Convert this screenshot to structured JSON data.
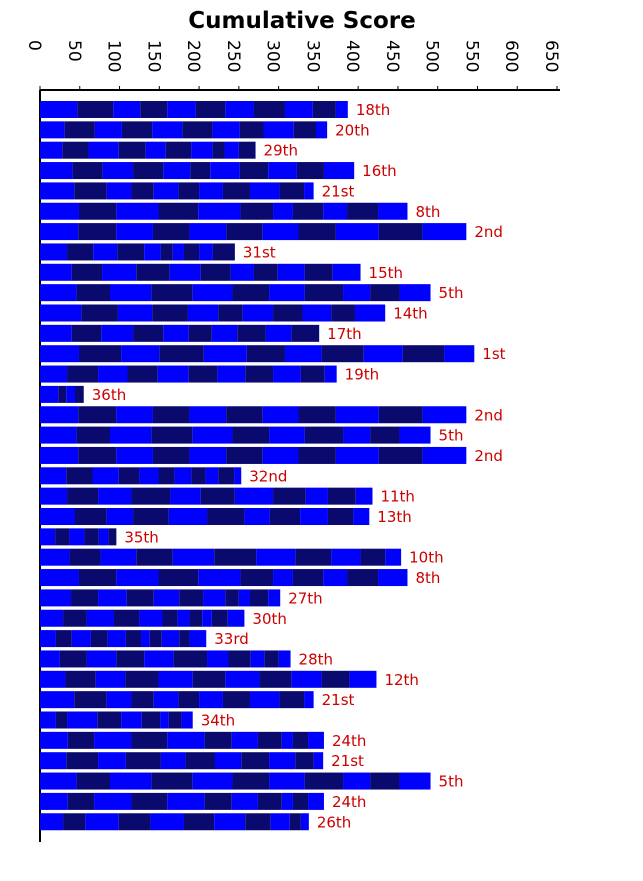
{
  "chart_data": {
    "type": "bar",
    "orientation": "horizontal",
    "stacked": true,
    "title": "Cumulative Score",
    "axis_position": "top",
    "xlim": [
      0,
      650
    ],
    "ticks": [
      0,
      50,
      100,
      150,
      200,
      250,
      300,
      350,
      400,
      450,
      500,
      550,
      600,
      650
    ],
    "tick_labels": [
      "0",
      "50",
      "100",
      "150",
      "200",
      "250",
      "300",
      "350",
      "400",
      "450",
      "500",
      "550",
      "600",
      "650"
    ],
    "segment_colors": [
      "#0000ff",
      "#0a0a6e"
    ],
    "label_color": "#cc0000",
    "rows": [
      {
        "rank": "18th",
        "segments": [
          47,
          45,
          34,
          34,
          36,
          37,
          36,
          39,
          35,
          29,
          15
        ]
      },
      {
        "rank": "20th",
        "segments": [
          31,
          38,
          34,
          38,
          38,
          38,
          34,
          30,
          38,
          28,
          14
        ]
      },
      {
        "rank": "29th",
        "segments": [
          28,
          33,
          38,
          34,
          25,
          32,
          27,
          15,
          18,
          21
        ]
      },
      {
        "rank": "16th",
        "segments": [
          41,
          38,
          38,
          38,
          34,
          25,
          37,
          36,
          36,
          34,
          38
        ]
      },
      {
        "rank": "21st",
        "segments": [
          43,
          41,
          31,
          28,
          31,
          26,
          30,
          34,
          37,
          31,
          12
        ]
      },
      {
        "rank": "8th",
        "segments": [
          49,
          47,
          53,
          50,
          53,
          41,
          25,
          38,
          30,
          39,
          37
        ]
      },
      {
        "rank": "2nd",
        "segments": [
          48,
          48,
          46,
          46,
          46,
          46,
          45,
          47,
          54,
          55,
          55
        ]
      },
      {
        "rank": "31st",
        "segments": [
          34,
          33,
          30,
          34,
          21,
          15,
          14,
          19,
          17,
          28
        ]
      },
      {
        "rank": "15th",
        "segments": [
          40,
          38,
          43,
          42,
          39,
          38,
          29,
          30,
          34,
          35,
          35
        ]
      },
      {
        "rank": "5th",
        "segments": [
          46,
          42,
          52,
          52,
          50,
          46,
          45,
          48,
          34,
          37,
          39
        ]
      },
      {
        "rank": "14th",
        "segments": [
          52,
          46,
          43,
          45,
          38,
          31,
          38,
          37,
          36,
          30,
          38
        ]
      },
      {
        "rank": "17th",
        "segments": [
          40,
          37,
          40,
          38,
          32,
          29,
          32,
          36,
          32,
          35
        ]
      },
      {
        "rank": "1st",
        "segments": [
          49,
          53,
          48,
          56,
          54,
          48,
          46,
          53,
          49,
          52,
          38
        ]
      },
      {
        "rank": "19th",
        "segments": [
          34,
          39,
          37,
          38,
          39,
          36,
          35,
          35,
          35,
          30,
          15
        ]
      },
      {
        "rank": "36th",
        "segments": [
          23,
          10,
          11,
          11
        ]
      },
      {
        "rank": "2nd",
        "segments": [
          48,
          48,
          46,
          46,
          46,
          46,
          45,
          47,
          54,
          55,
          55
        ]
      },
      {
        "rank": "5th",
        "segments": [
          46,
          42,
          52,
          52,
          50,
          46,
          45,
          48,
          34,
          37,
          39
        ]
      },
      {
        "rank": "2nd",
        "segments": [
          48,
          48,
          46,
          46,
          46,
          46,
          45,
          47,
          54,
          55,
          55
        ]
      },
      {
        "rank": "32nd",
        "segments": [
          33,
          33,
          33,
          26,
          24,
          20,
          21,
          18,
          16,
          20,
          9
        ]
      },
      {
        "rank": "11th",
        "segments": [
          34,
          39,
          42,
          49,
          38,
          43,
          48,
          41,
          28,
          35,
          21
        ]
      },
      {
        "rank": "13th",
        "segments": [
          44,
          40,
          33,
          45,
          48,
          47,
          32,
          38,
          35,
          32,
          20
        ]
      },
      {
        "rank": "35th",
        "segments": [
          19,
          18,
          19,
          18,
          12,
          10
        ]
      },
      {
        "rank": "10th",
        "segments": [
          37,
          39,
          45,
          46,
          52,
          53,
          49,
          45,
          37,
          31,
          20
        ]
      },
      {
        "rank": "8th",
        "segments": [
          49,
          47,
          53,
          50,
          53,
          41,
          25,
          38,
          30,
          39,
          37
        ]
      },
      {
        "rank": "27th",
        "segments": [
          39,
          34,
          36,
          34,
          32,
          30,
          28,
          17,
          14,
          23,
          15
        ]
      },
      {
        "rank": "30th",
        "segments": [
          29,
          30,
          34,
          32,
          29,
          19,
          15,
          16,
          12,
          20,
          21
        ]
      },
      {
        "rank": "33rd",
        "segments": [
          20,
          20,
          24,
          21,
          23,
          19,
          11,
          15,
          22,
          13,
          21
        ]
      },
      {
        "rank": "28th",
        "segments": [
          25,
          34,
          37,
          35,
          37,
          42,
          27,
          28,
          17,
          18,
          15
        ]
      },
      {
        "rank": "12th",
        "segments": [
          32,
          38,
          37,
          42,
          43,
          41,
          43,
          40,
          38,
          35,
          34
        ]
      },
      {
        "rank": "21st",
        "segments": [
          43,
          41,
          31,
          28,
          31,
          26,
          30,
          34,
          37,
          31,
          12
        ]
      },
      {
        "rank": "34th",
        "segments": [
          20,
          14,
          38,
          30,
          26,
          23,
          11,
          16,
          14
        ]
      },
      {
        "rank": "24th",
        "segments": [
          35,
          33,
          47,
          45,
          47,
          34,
          33,
          30,
          14,
          19,
          20
        ]
      },
      {
        "rank": "21st",
        "segments": [
          33,
          40,
          35,
          44,
          31,
          37,
          33,
          35,
          33,
          23,
          12
        ]
      },
      {
        "rank": "5th",
        "segments": [
          46,
          42,
          52,
          52,
          50,
          46,
          45,
          48,
          34,
          37,
          39
        ]
      },
      {
        "rank": "24th",
        "segments": [
          35,
          33,
          47,
          45,
          47,
          34,
          33,
          30,
          14,
          19,
          20
        ]
      },
      {
        "rank": "26th",
        "segments": [
          29,
          28,
          42,
          40,
          42,
          38,
          39,
          32,
          24,
          14,
          10
        ]
      }
    ]
  }
}
